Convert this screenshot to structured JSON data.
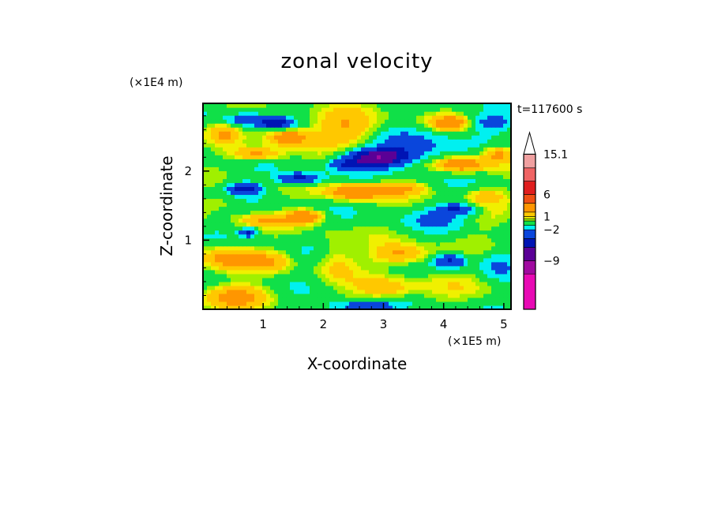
{
  "chart_data": {
    "type": "heatmap",
    "title": "zonal velocity",
    "xlabel": "X-coordinate",
    "ylabel": "Z-coordinate",
    "x_scale_label": "(×1E5 m)",
    "y_scale_label": "(×1E4 m)",
    "time_label": "t=117600 s",
    "xlim": [
      0,
      5.12
    ],
    "ylim": [
      0,
      2.98
    ],
    "x_ticks": [
      1,
      2,
      3,
      4,
      5
    ],
    "y_ticks": [
      1,
      2
    ],
    "x_tick_labels": [
      "1",
      "2",
      "3",
      "4",
      "5"
    ],
    "y_tick_labels": [
      "1",
      "2"
    ],
    "grid": false,
    "colorbar": {
      "placement": "right",
      "extend": "max",
      "labels": [
        "15.1",
        "6",
        "1",
        "−2",
        "−9"
      ],
      "label_values": [
        15.1,
        6,
        1,
        -2,
        -9
      ],
      "bins": [
        {
          "from": -20,
          "to": -12,
          "color": "#e80ab4"
        },
        {
          "from": -12,
          "to": -9,
          "color": "#a00aa0"
        },
        {
          "from": -9,
          "to": -6,
          "color": "#5a0096"
        },
        {
          "from": -6,
          "to": -4,
          "color": "#0014b4"
        },
        {
          "from": -4,
          "to": -2,
          "color": "#0a46dc"
        },
        {
          "from": -2,
          "to": -1,
          "color": "#00f0f0"
        },
        {
          "from": -1,
          "to": 0,
          "color": "#10e048"
        },
        {
          "from": 0,
          "to": 0.5,
          "color": "#a0f000"
        },
        {
          "from": 0.5,
          "to": 1,
          "color": "#f0f000"
        },
        {
          "from": 1,
          "to": 2,
          "color": "#ffc800"
        },
        {
          "from": 2,
          "to": 4,
          "color": "#ff9600"
        },
        {
          "from": 4,
          "to": 6,
          "color": "#f05014"
        },
        {
          "from": 6,
          "to": 9,
          "color": "#e01e1e"
        },
        {
          "from": 9,
          "to": 12,
          "color": "#f06464"
        },
        {
          "from": 12,
          "to": 15.1,
          "color": "#f0a0a0"
        },
        {
          "from": 15.1,
          "to": 20,
          "color": "#ffffff"
        }
      ],
      "bar_range": [
        -20,
        20
      ]
    },
    "field_features": [
      {
        "x": 0.35,
        "z": 2.55,
        "rx": 0.25,
        "rz": 0.14,
        "u": 2.0
      },
      {
        "x": 0.9,
        "z": 2.25,
        "rx": 0.45,
        "rz": 0.1,
        "u": 3.0
      },
      {
        "x": 1.4,
        "z": 2.5,
        "rx": 0.35,
        "rz": 0.12,
        "u": 3.5
      },
      {
        "x": 0.7,
        "z": 2.75,
        "rx": 0.3,
        "rz": 0.08,
        "u": -3.0
      },
      {
        "x": 1.2,
        "z": 2.7,
        "rx": 0.25,
        "rz": 0.07,
        "u": -5.0
      },
      {
        "x": 2.4,
        "z": 2.62,
        "rx": 0.6,
        "rz": 0.25,
        "u": 2.5
      },
      {
        "x": 2.9,
        "z": 2.2,
        "rx": 0.45,
        "rz": 0.12,
        "u": -8.0
      },
      {
        "x": 2.4,
        "z": 2.1,
        "rx": 0.3,
        "rz": 0.08,
        "u": -3.0
      },
      {
        "x": 3.45,
        "z": 2.35,
        "rx": 0.55,
        "rz": 0.22,
        "u": -3.0
      },
      {
        "x": 4.1,
        "z": 2.7,
        "rx": 0.3,
        "rz": 0.1,
        "u": 3.5
      },
      {
        "x": 4.8,
        "z": 2.7,
        "rx": 0.35,
        "rz": 0.12,
        "u": -2.5
      },
      {
        "x": 4.3,
        "z": 2.1,
        "rx": 0.4,
        "rz": 0.1,
        "u": 4.0
      },
      {
        "x": 4.9,
        "z": 2.25,
        "rx": 0.3,
        "rz": 0.12,
        "u": 3.0
      },
      {
        "x": 3.2,
        "z": 1.75,
        "rx": 0.55,
        "rz": 0.1,
        "u": 2.5
      },
      {
        "x": 2.5,
        "z": 1.7,
        "rx": 0.45,
        "rz": 0.12,
        "u": 3.5
      },
      {
        "x": 1.6,
        "z": 1.9,
        "rx": 0.35,
        "rz": 0.08,
        "u": -4.5
      },
      {
        "x": 0.7,
        "z": 1.75,
        "rx": 0.25,
        "rz": 0.08,
        "u": -5.0
      },
      {
        "x": 0.3,
        "z": 1.55,
        "rx": 0.35,
        "rz": 0.12,
        "u": 1.2
      },
      {
        "x": 1.0,
        "z": 1.3,
        "rx": 0.45,
        "rz": 0.1,
        "u": 2.0
      },
      {
        "x": 1.7,
        "z": 1.35,
        "rx": 0.3,
        "rz": 0.1,
        "u": 4.0
      },
      {
        "x": 4.2,
        "z": 1.45,
        "rx": 0.3,
        "rz": 0.08,
        "u": -4.0
      },
      {
        "x": 4.7,
        "z": 1.65,
        "rx": 0.35,
        "rz": 0.12,
        "u": 2.0
      },
      {
        "x": 4.7,
        "z": 1.25,
        "rx": 0.4,
        "rz": 0.15,
        "u": 0.6
      },
      {
        "x": 3.8,
        "z": 1.3,
        "rx": 0.45,
        "rz": 0.15,
        "u": -1.5
      },
      {
        "x": 0.75,
        "z": 1.12,
        "rx": 0.12,
        "rz": 0.06,
        "u": -4.5
      },
      {
        "x": 0.4,
        "z": 0.75,
        "rx": 0.45,
        "rz": 0.18,
        "u": 3.0
      },
      {
        "x": 1.1,
        "z": 0.7,
        "rx": 0.35,
        "rz": 0.15,
        "u": 2.0
      },
      {
        "x": 0.6,
        "z": 0.2,
        "rx": 0.6,
        "rz": 0.18,
        "u": 2.5
      },
      {
        "x": 2.2,
        "z": 0.75,
        "rx": 0.3,
        "rz": 0.35,
        "u": 1.5
      },
      {
        "x": 3.3,
        "z": 0.8,
        "rx": 0.5,
        "rz": 0.15,
        "u": 3.0
      },
      {
        "x": 4.1,
        "z": 0.7,
        "rx": 0.25,
        "rz": 0.1,
        "u": -4.0
      },
      {
        "x": 4.3,
        "z": 0.3,
        "rx": 0.8,
        "rz": 0.3,
        "u": 0.6
      },
      {
        "x": 3.0,
        "z": 0.3,
        "rx": 0.5,
        "rz": 0.15,
        "u": 2.5
      },
      {
        "x": 4.9,
        "z": 0.65,
        "rx": 0.3,
        "rz": 0.2,
        "u": -1.5
      },
      {
        "x": 2.6,
        "z": 0.05,
        "rx": 0.6,
        "rz": 0.06,
        "u": -3.0
      }
    ]
  }
}
